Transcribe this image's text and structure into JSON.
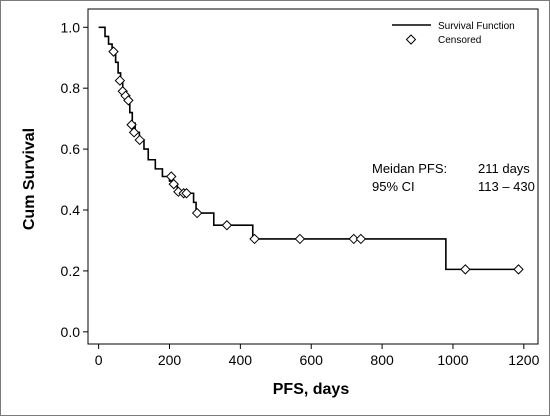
{
  "chart_data": {
    "type": "line",
    "title": "",
    "xlabel": "PFS, days",
    "ylabel": "Cum Survival",
    "xlim": [
      -30,
      1240
    ],
    "ylim": [
      -0.04,
      1.06
    ],
    "xticks": [
      0,
      200,
      400,
      600,
      800,
      1000,
      1200
    ],
    "yticks": [
      0.0,
      0.2,
      0.4,
      0.6,
      0.8,
      1.0
    ],
    "ytick_labels": [
      "0.0",
      "0.2",
      "0.4",
      "0.6",
      "0.8",
      "1.0"
    ],
    "grid": false,
    "legend_position": "top-right",
    "series": [
      {
        "name": "Survival Function",
        "kind": "step",
        "points": [
          [
            0,
            1.0
          ],
          [
            18,
            0.97
          ],
          [
            28,
            0.945
          ],
          [
            38,
            0.92
          ],
          [
            48,
            0.885
          ],
          [
            55,
            0.85
          ],
          [
            62,
            0.82
          ],
          [
            68,
            0.79
          ],
          [
            78,
            0.76
          ],
          [
            88,
            0.72
          ],
          [
            95,
            0.685
          ],
          [
            103,
            0.655
          ],
          [
            115,
            0.63
          ],
          [
            128,
            0.6
          ],
          [
            140,
            0.565
          ],
          [
            160,
            0.535
          ],
          [
            180,
            0.51
          ],
          [
            200,
            0.495
          ],
          [
            212,
            0.48
          ],
          [
            222,
            0.455
          ],
          [
            268,
            0.425
          ],
          [
            275,
            0.39
          ],
          [
            325,
            0.35
          ],
          [
            435,
            0.305
          ],
          [
            980,
            0.205
          ],
          [
            1185,
            0.205
          ]
        ]
      },
      {
        "name": "Censored",
        "kind": "marker",
        "points": [
          [
            42,
            0.92
          ],
          [
            60,
            0.825
          ],
          [
            68,
            0.79
          ],
          [
            76,
            0.775
          ],
          [
            84,
            0.76
          ],
          [
            93,
            0.68
          ],
          [
            100,
            0.655
          ],
          [
            116,
            0.63
          ],
          [
            205,
            0.51
          ],
          [
            212,
            0.485
          ],
          [
            225,
            0.46
          ],
          [
            240,
            0.455
          ],
          [
            248,
            0.455
          ],
          [
            278,
            0.39
          ],
          [
            362,
            0.35
          ],
          [
            440,
            0.305
          ],
          [
            568,
            0.305
          ],
          [
            720,
            0.305
          ],
          [
            740,
            0.305
          ],
          [
            1035,
            0.205
          ],
          [
            1185,
            0.205
          ]
        ]
      }
    ],
    "annotations": {
      "median_label": "Meidan PFS:",
      "median_value": "211 days",
      "ci_label": "95% CI",
      "ci_value": "113 – 430"
    }
  }
}
